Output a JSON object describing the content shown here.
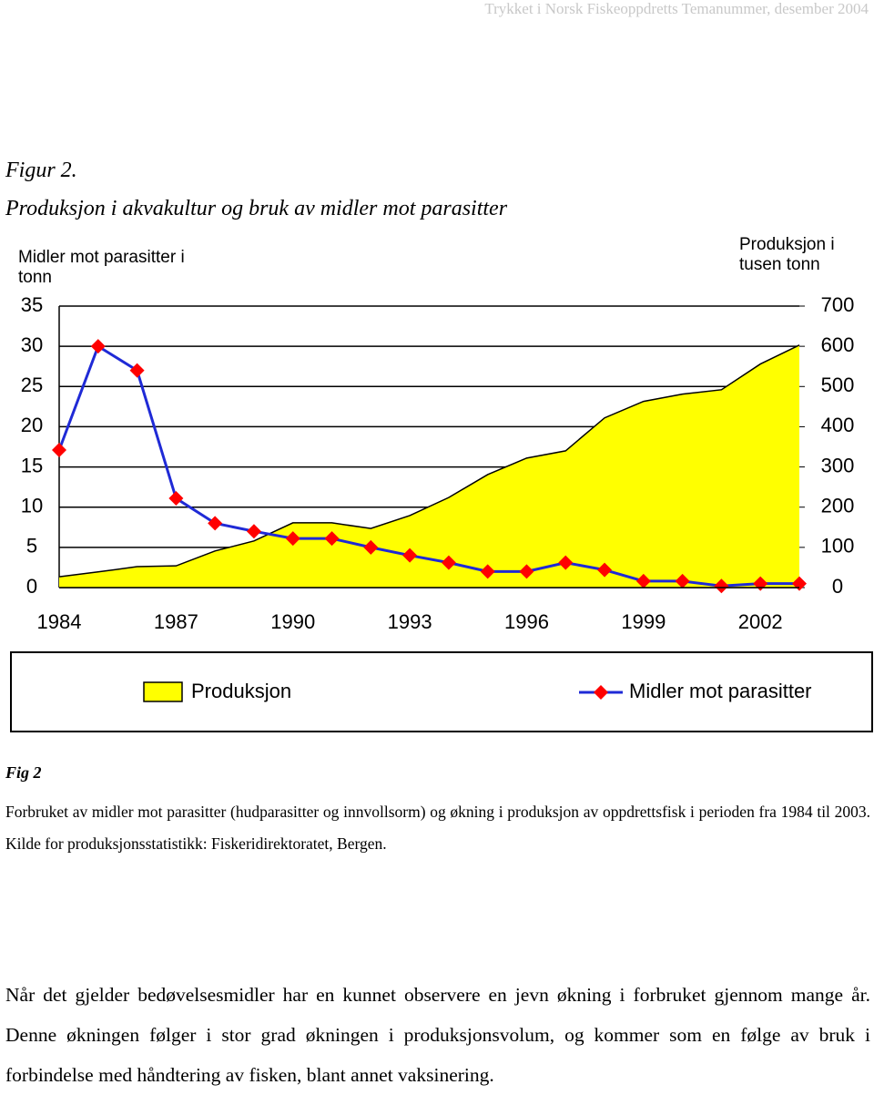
{
  "header": "Trykket i Norsk Fiskeoppdretts Temanummer, desember 2004",
  "figure_label": "Figur 2.",
  "figure_title": "Produksjon i akvakultur og bruk av midler mot parasitter",
  "chart_data": {
    "type": "area-line",
    "y_label": "Midler mot parasitter i tonn",
    "y2_label": "Produksjon i tusen tonn",
    "categories": [
      "1984",
      null,
      null,
      "1987",
      null,
      null,
      "1990",
      null,
      null,
      "1993",
      null,
      null,
      "1996",
      null,
      null,
      "1999",
      null,
      null,
      "2002",
      null
    ],
    "ylim": [
      0,
      35
    ],
    "yticks": [
      0,
      5,
      10,
      15,
      20,
      25,
      30,
      35
    ],
    "y2lim": [
      0,
      700
    ],
    "y2ticks": [
      0,
      100,
      200,
      300,
      400,
      500,
      600,
      700
    ],
    "grid": true,
    "series": [
      {
        "name": "Produksjon",
        "color": "#ffff00",
        "axis": "y2",
        "values": [
          27,
          39,
          52,
          54,
          91,
          116,
          161,
          161,
          147,
          179,
          224,
          281,
          322,
          340,
          422,
          463,
          481,
          492,
          556,
          603
        ]
      },
      {
        "name": "Midler mot parasitter",
        "color": "#1f2ad6",
        "marker_color": "#ff0000",
        "values": [
          17.1,
          30,
          27,
          11.1,
          8,
          7,
          6.1,
          6.1,
          5,
          4,
          3.1,
          2,
          2,
          3.1,
          2.2,
          0.8,
          0.8,
          0.2,
          0.5,
          0.5
        ]
      }
    ]
  },
  "caption": {
    "label": "Fig 2",
    "text": "Forbruket av midler mot parasitter (hudparasitter og innvollsorm) og økning i produksjon av oppdrettsfisk i perioden fra 1984 til 2003. Kilde for produksjonsstatistikk: Fiskeridirektoratet, Bergen."
  },
  "body": "Når det gjelder bedøvelsesmidler har en kunnet observere en jevn økning i forbruket gjennom mange år. Denne økningen følger i stor grad økningen i produksjonsvolum, og kommer som en følge av bruk i forbindelse med håndtering av fisken, blant annet vaksinering."
}
